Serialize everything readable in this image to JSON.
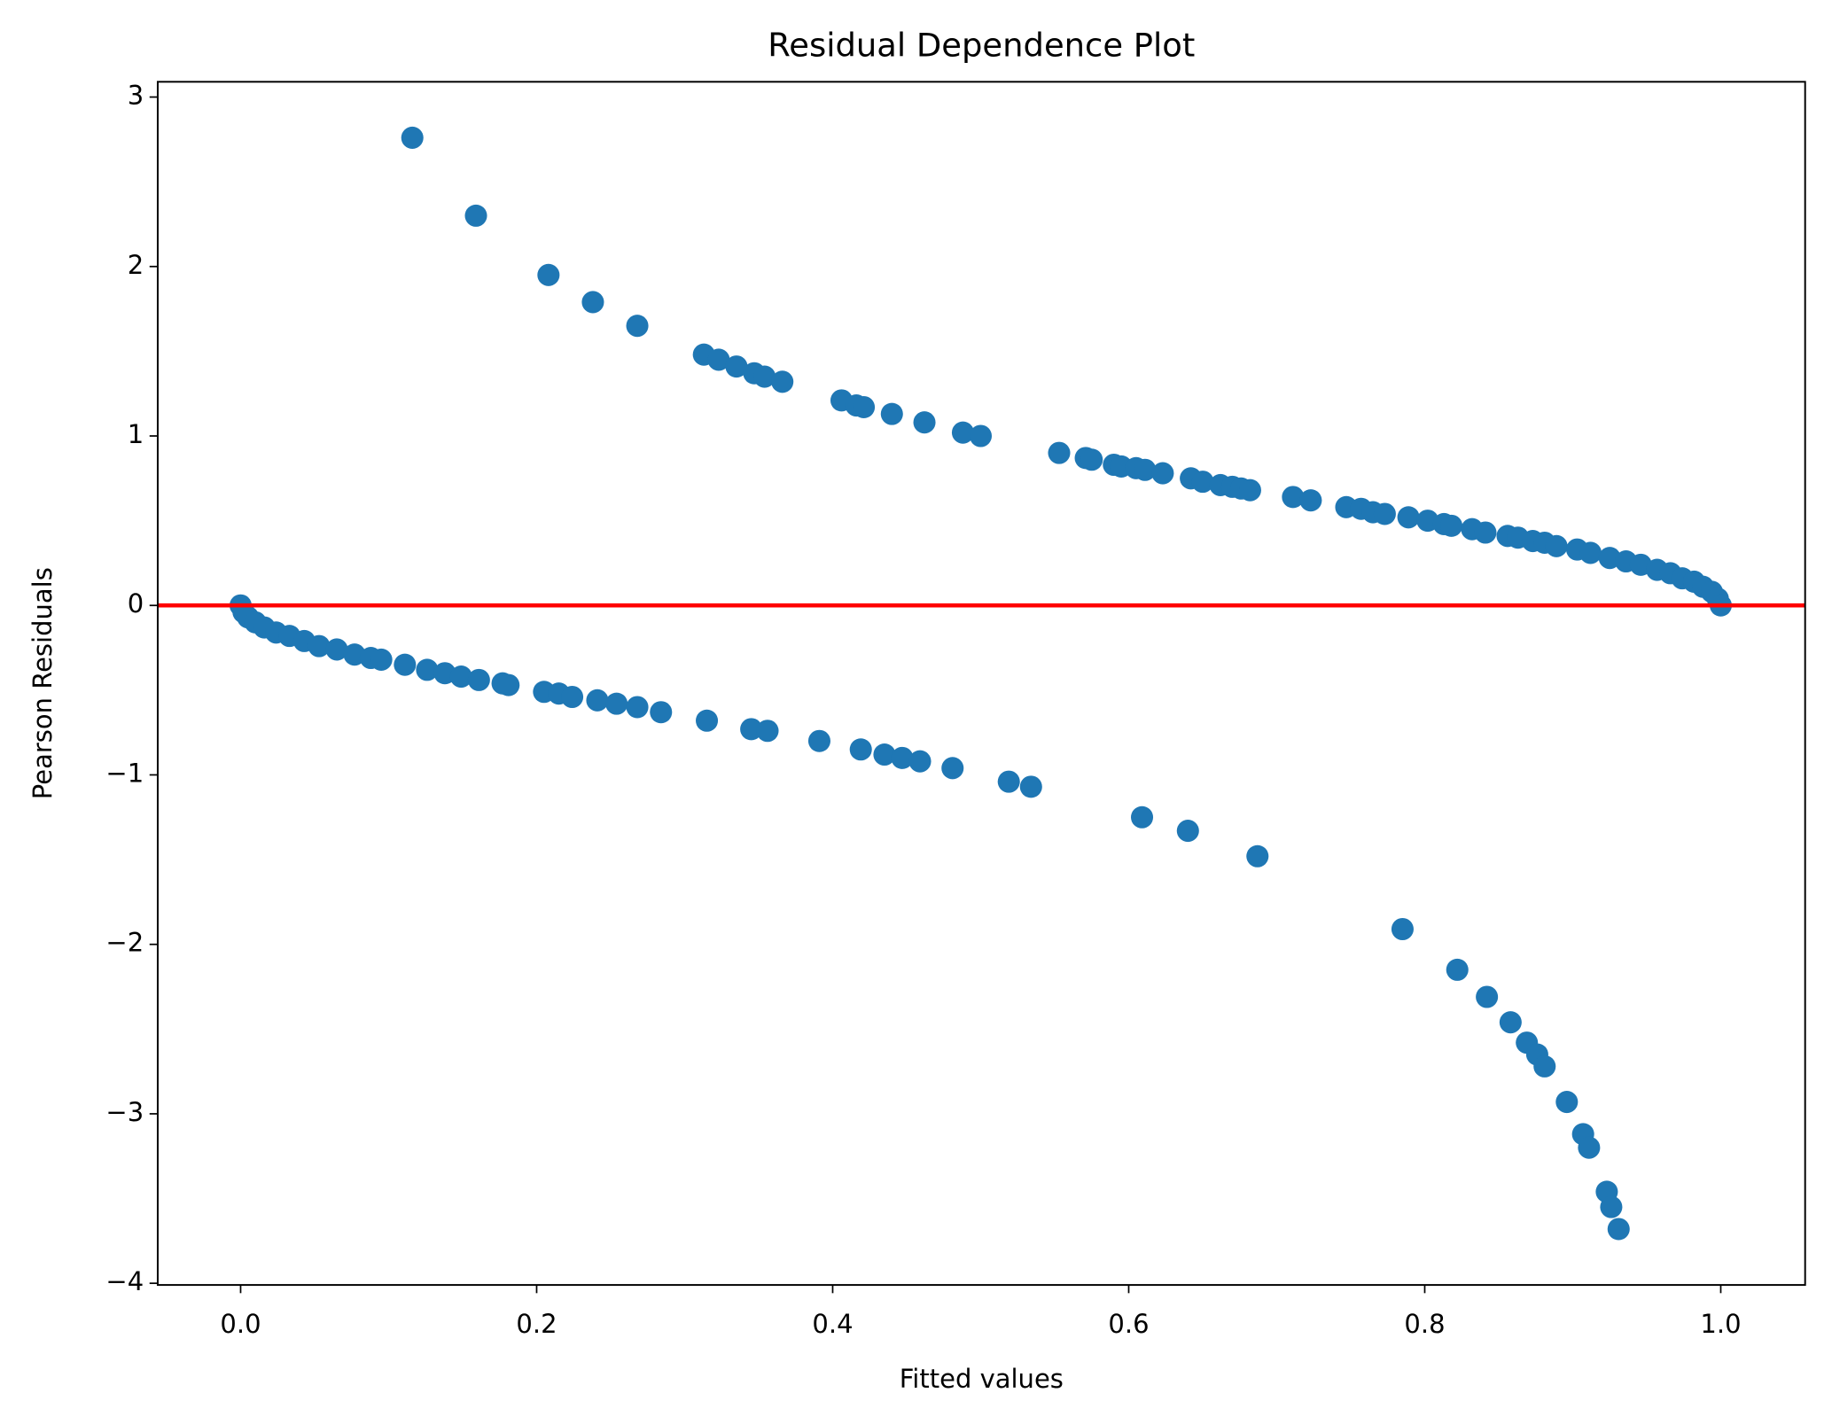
{
  "chart_data": {
    "type": "scatter",
    "title": "Residual Dependence Plot",
    "x_label": "Fitted values",
    "y_label": "Pearson Residuals",
    "color": "#1f77b4",
    "x": [
      0.116,
      0.159,
      0.208,
      0.238,
      0.268,
      0.313,
      0.323,
      0.335,
      0.347,
      0.354,
      0.366,
      0.406,
      0.416,
      0.421,
      0.44,
      0.462,
      0.488,
      0.5,
      0.553,
      0.571,
      0.575,
      0.59,
      0.595,
      0.605,
      0.611,
      0.623,
      0.642,
      0.65,
      0.662,
      0.67,
      0.676,
      0.682,
      0.711,
      0.723,
      0.747,
      0.757,
      0.765,
      0.773,
      0.789,
      0.802,
      0.813,
      0.818,
      0.832,
      0.841,
      0.856,
      0.863,
      0.873,
      0.881,
      0.889,
      0.903,
      0.912,
      0.925,
      0.936,
      0.946,
      0.957,
      0.966,
      0.974,
      0.982,
      0.988,
      0.994,
      0.998,
      1.0,
      0.0,
      0.002,
      0.005,
      0.01,
      0.016,
      0.024,
      0.033,
      0.043,
      0.053,
      0.065,
      0.077,
      0.088,
      0.095,
      0.111,
      0.126,
      0.138,
      0.149,
      0.161,
      0.177,
      0.181,
      0.205,
      0.215,
      0.224,
      0.241,
      0.254,
      0.268,
      0.284,
      0.315,
      0.345,
      0.356,
      0.391,
      0.419,
      0.435,
      0.447,
      0.459,
      0.481,
      0.519,
      0.534,
      0.609,
      0.64,
      0.687,
      0.785,
      0.822,
      0.842,
      0.858,
      0.869,
      0.876,
      0.881,
      0.896,
      0.907,
      0.911,
      0.923,
      0.926,
      0.931
    ],
    "values": [
      2.76,
      2.3,
      1.95,
      1.79,
      1.65,
      1.48,
      1.45,
      1.41,
      1.37,
      1.35,
      1.32,
      1.21,
      1.18,
      1.17,
      1.13,
      1.08,
      1.02,
      1.0,
      0.9,
      0.87,
      0.86,
      0.83,
      0.82,
      0.81,
      0.8,
      0.78,
      0.75,
      0.73,
      0.71,
      0.7,
      0.69,
      0.68,
      0.64,
      0.62,
      0.58,
      0.57,
      0.55,
      0.54,
      0.52,
      0.5,
      0.48,
      0.47,
      0.45,
      0.43,
      0.41,
      0.4,
      0.38,
      0.37,
      0.35,
      0.33,
      0.31,
      0.28,
      0.26,
      0.24,
      0.21,
      0.19,
      0.16,
      0.14,
      0.11,
      0.08,
      0.04,
      0.0,
      0,
      -0.04,
      -0.07,
      -0.1,
      -0.13,
      -0.16,
      -0.18,
      -0.21,
      -0.24,
      -0.26,
      -0.29,
      -0.31,
      -0.32,
      -0.35,
      -0.38,
      -0.4,
      -0.42,
      -0.44,
      -0.46,
      -0.47,
      -0.51,
      -0.52,
      -0.54,
      -0.56,
      -0.58,
      -0.6,
      -0.63,
      -0.68,
      -0.73,
      -0.74,
      -0.8,
      -0.85,
      -0.88,
      -0.9,
      -0.92,
      -0.96,
      -1.04,
      -1.07,
      -1.25,
      -1.33,
      -1.48,
      -1.91,
      -2.15,
      -2.31,
      -2.46,
      -2.58,
      -2.65,
      -2.72,
      -2.93,
      -3.12,
      -3.2,
      -3.46,
      -3.55,
      -3.68
    ],
    "xlim": [
      -0.056,
      1.057
    ],
    "ylim": [
      -4.01,
      3.09
    ],
    "xticks": [
      {
        "value": 0,
        "label": "0.0"
      },
      0.2,
      0.4,
      0.6,
      0.8,
      {
        "value": 1,
        "label": "1.0"
      }
    ],
    "yticks": [
      {
        "value": -4,
        "label": "−4"
      },
      {
        "value": -3,
        "label": "−3"
      },
      {
        "value": -2,
        "label": "−2"
      },
      {
        "value": -1,
        "label": "−1"
      },
      0,
      1,
      2,
      3
    ],
    "hline": {
      "value": 0,
      "color": "red"
    }
  }
}
